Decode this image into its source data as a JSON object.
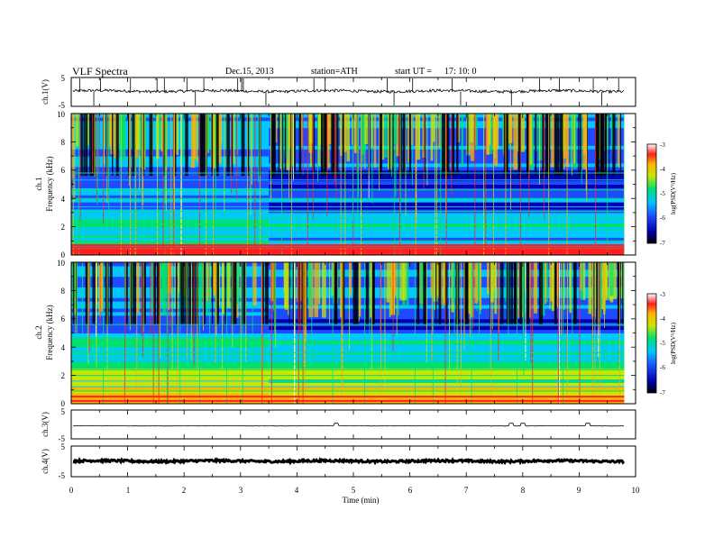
{
  "header": {
    "title": "VLF  Spectra",
    "date": "Dec.15, 2013",
    "station": "station=ATH",
    "start_label": "start  UT  =",
    "start_time": "17: 10: 0"
  },
  "chart_data": {
    "type": "heatmap",
    "xlabel": "Time  (min)",
    "xlim": [
      0,
      10
    ],
    "x_ticks": [
      "0",
      "1",
      "2",
      "3",
      "4",
      "5",
      "6",
      "7",
      "8",
      "9",
      "10"
    ],
    "data_end_min": 9.8,
    "panels": [
      {
        "kind": "waveform",
        "ylabel": "ch.1(V)",
        "ylim": [
          -5,
          5
        ],
        "y_ticks": [
          "5",
          "-5"
        ],
        "level": 0.3,
        "noise": 0.5,
        "spikes": [
          0.15,
          0.4,
          0.52,
          1.05,
          1.52,
          1.65,
          2.05,
          2.2,
          2.35,
          2.95,
          3.02,
          3.05,
          3.45,
          4.3,
          4.5,
          5.6,
          5.72,
          6.05,
          6.75,
          6.9,
          7.8,
          8.3,
          8.65,
          9.25,
          9.4,
          9.7
        ]
      },
      {
        "kind": "spectrogram",
        "ylabel": "Frequency (kHz)",
        "channel_label": "ch.1",
        "ylim": [
          0,
          10
        ],
        "y_ticks": [
          "0",
          "2",
          "4",
          "6",
          "8",
          "10"
        ],
        "colorbar": {
          "label": "log(PSD(V²/Hz)",
          "range": [
            -7,
            -3
          ],
          "ticks": [
            "-3",
            "-4",
            "-5",
            "-6",
            "-7"
          ]
        },
        "transition_min": 3.5,
        "bands_khz": [
          0.3,
          0.55,
          0.7,
          1.0,
          1.4,
          1.8,
          2.2,
          2.6,
          3.1,
          3.4,
          4.0,
          4.6,
          5.3,
          5.8
        ]
      },
      {
        "kind": "spectrogram",
        "ylabel": "Frequency (kHz)",
        "channel_label": "ch.2",
        "ylim": [
          0,
          10
        ],
        "y_ticks": [
          "0",
          "2",
          "4",
          "6",
          "8",
          "10"
        ],
        "colorbar": {
          "label": "log(PSD(V²/Hz)",
          "range": [
            -7,
            -3
          ],
          "ticks": [
            "-3",
            "-4",
            "-5",
            "-6",
            "-7"
          ]
        },
        "transition_min": 3.5,
        "bands_khz": [
          0.2,
          0.5,
          0.9,
          1.2,
          1.6,
          2.0,
          2.4,
          2.8,
          3.2,
          3.6,
          4.2,
          4.7,
          5.6
        ]
      },
      {
        "kind": "waveform",
        "ylabel": "ch.3(V)",
        "ylim": [
          -5,
          5
        ],
        "y_ticks": [
          "5",
          "-5"
        ],
        "level": -0.5,
        "noise": 0.05,
        "bumps": [
          4.7,
          7.8,
          8.0,
          9.15
        ]
      },
      {
        "kind": "waveform",
        "ylabel": "ch.4(V)",
        "ylim": [
          -5,
          5
        ],
        "y_ticks": [
          "5",
          "-5"
        ],
        "level": 0.1,
        "noise": 0.35,
        "bumps": []
      }
    ],
    "grid": false,
    "legend": "none"
  },
  "colors": {
    "background": "#ffffff",
    "axis": "#000000",
    "colormap": [
      "#000000",
      "#0000b0",
      "#1e4bff",
      "#00c8ff",
      "#00e070",
      "#c8e600",
      "#ffb400",
      "#ff2020",
      "#ffffff"
    ]
  }
}
